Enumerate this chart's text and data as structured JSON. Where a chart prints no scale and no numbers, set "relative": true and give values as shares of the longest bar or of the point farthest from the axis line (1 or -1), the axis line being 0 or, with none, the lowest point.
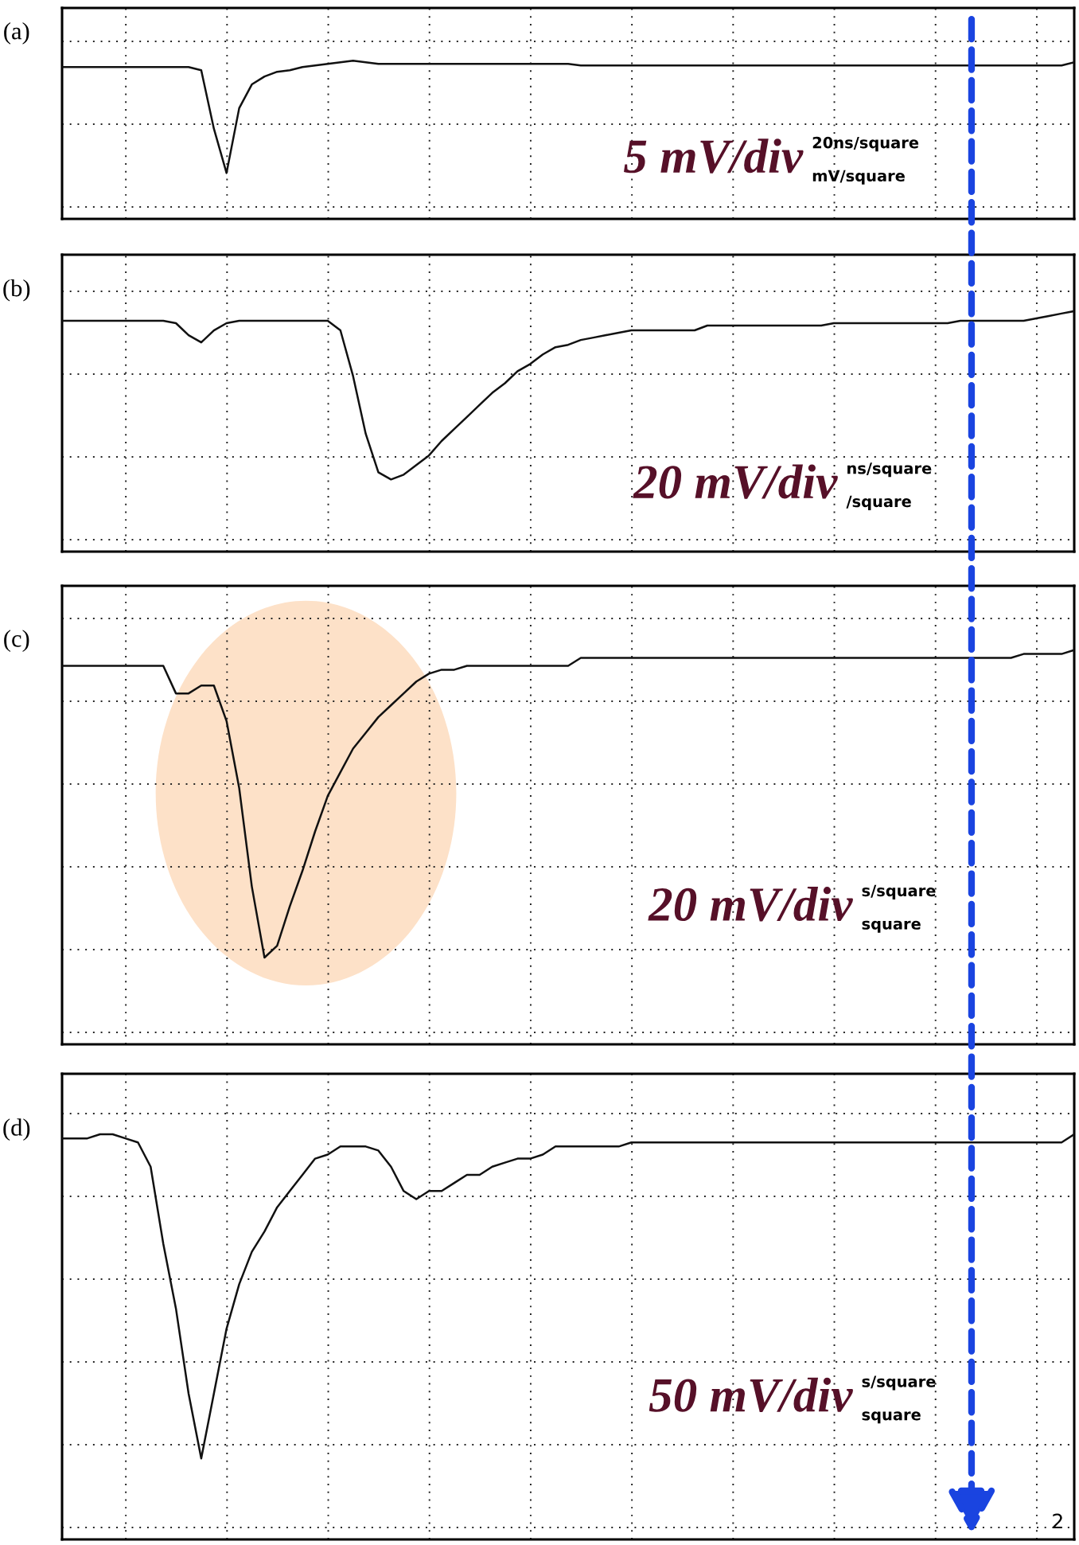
{
  "chart_data": [
    {
      "type": "line",
      "title": "(a)",
      "relative": true,
      "grid": true,
      "categories": [
        null,
        null,
        null,
        null,
        null,
        null,
        null,
        null,
        null,
        null,
        null,
        null,
        null,
        null,
        null,
        null,
        null,
        null,
        null,
        null,
        null,
        null,
        null,
        null,
        null,
        null,
        null,
        null,
        null,
        null,
        null,
        null,
        null,
        null,
        null,
        null,
        null,
        null,
        null,
        null,
        null,
        null,
        null,
        null,
        null,
        null,
        null,
        null,
        null,
        null,
        null,
        null,
        null,
        null,
        null,
        null,
        null,
        null,
        null,
        null,
        null,
        null,
        null,
        null,
        null,
        null,
        null,
        null,
        null,
        null,
        null,
        null,
        null,
        null,
        null,
        null,
        null,
        null,
        null,
        null,
        null
      ],
      "series": [
        {
          "color": "#111111",
          "values": [
            0.96,
            0.96,
            0.96,
            0.96,
            0.96,
            0.96,
            0.96,
            0.96,
            0.96,
            0.96,
            0.96,
            0.94,
            0.57,
            0.29,
            0.7,
            0.85,
            0.9,
            0.93,
            0.94,
            0.96,
            0.97,
            0.98,
            0.99,
            1.0,
            0.99,
            0.98,
            0.98,
            0.98,
            0.98,
            0.98,
            0.98,
            0.98,
            0.98,
            0.98,
            0.98,
            0.98,
            0.98,
            0.98,
            0.98,
            0.98,
            0.98,
            0.97,
            0.97,
            0.97,
            0.97,
            0.97,
            0.97,
            0.97,
            0.97,
            0.97,
            0.97,
            0.97,
            0.97,
            0.97,
            0.97,
            0.97,
            0.97,
            0.97,
            0.97,
            0.97,
            0.97,
            0.97,
            0.97,
            0.97,
            0.97,
            0.97,
            0.97,
            0.97,
            0.97,
            0.97,
            0.97,
            0.97,
            0.97,
            0.97,
            0.97,
            0.97,
            0.97,
            0.97,
            0.97,
            0.97,
            0.99
          ]
        }
      ],
      "annotations": [
        "5 mV/div",
        "20ns/square",
        "mV/square"
      ]
    },
    {
      "type": "line",
      "title": "(b)",
      "relative": true,
      "grid": true,
      "categories": [
        null,
        null,
        null,
        null,
        null,
        null,
        null,
        null,
        null,
        null,
        null,
        null,
        null,
        null,
        null,
        null,
        null,
        null,
        null,
        null,
        null,
        null,
        null,
        null,
        null,
        null,
        null,
        null,
        null,
        null,
        null,
        null,
        null,
        null,
        null,
        null,
        null,
        null,
        null,
        null,
        null,
        null,
        null,
        null,
        null,
        null,
        null,
        null,
        null,
        null,
        null,
        null,
        null,
        null,
        null,
        null,
        null,
        null,
        null,
        null,
        null,
        null,
        null,
        null,
        null,
        null,
        null,
        null,
        null,
        null,
        null,
        null,
        null,
        null,
        null,
        null,
        null,
        null,
        null,
        null,
        null
      ],
      "series": [
        {
          "color": "#111111",
          "values": [
            0.96,
            0.96,
            0.96,
            0.96,
            0.96,
            0.96,
            0.96,
            0.96,
            0.96,
            0.95,
            0.9,
            0.87,
            0.92,
            0.95,
            0.96,
            0.96,
            0.96,
            0.96,
            0.96,
            0.96,
            0.96,
            0.96,
            0.92,
            0.73,
            0.49,
            0.33,
            0.3,
            0.32,
            0.36,
            0.4,
            0.46,
            0.51,
            0.56,
            0.61,
            0.66,
            0.7,
            0.75,
            0.78,
            0.82,
            0.85,
            0.86,
            0.88,
            0.89,
            0.9,
            0.91,
            0.92,
            0.92,
            0.92,
            0.92,
            0.92,
            0.92,
            0.94,
            0.94,
            0.94,
            0.94,
            0.94,
            0.94,
            0.94,
            0.94,
            0.94,
            0.94,
            0.95,
            0.95,
            0.95,
            0.95,
            0.95,
            0.95,
            0.95,
            0.95,
            0.95,
            0.95,
            0.96,
            0.96,
            0.96,
            0.96,
            0.96,
            0.96,
            0.97,
            0.98,
            0.99,
            1.0
          ]
        }
      ],
      "annotations": [
        "20 mV/div",
        "ns/square",
        "/square"
      ]
    },
    {
      "type": "line",
      "title": "(c)",
      "relative": true,
      "grid": true,
      "categories": [
        null,
        null,
        null,
        null,
        null,
        null,
        null,
        null,
        null,
        null,
        null,
        null,
        null,
        null,
        null,
        null,
        null,
        null,
        null,
        null,
        null,
        null,
        null,
        null,
        null,
        null,
        null,
        null,
        null,
        null,
        null,
        null,
        null,
        null,
        null,
        null,
        null,
        null,
        null,
        null,
        null,
        null,
        null,
        null,
        null,
        null,
        null,
        null,
        null,
        null,
        null,
        null,
        null,
        null,
        null,
        null,
        null,
        null,
        null,
        null,
        null,
        null,
        null,
        null,
        null,
        null,
        null,
        null,
        null,
        null,
        null,
        null,
        null,
        null,
        null,
        null,
        null,
        null,
        null,
        null,
        null
      ],
      "series": [
        {
          "color": "#111111",
          "values": [
            0.96,
            0.96,
            0.96,
            0.96,
            0.96,
            0.96,
            0.96,
            0.96,
            0.96,
            0.89,
            0.89,
            0.91,
            0.91,
            0.82,
            0.65,
            0.4,
            0.22,
            0.25,
            0.35,
            0.44,
            0.54,
            0.63,
            0.69,
            0.75,
            0.79,
            0.83,
            0.86,
            0.89,
            0.92,
            0.94,
            0.95,
            0.95,
            0.96,
            0.96,
            0.96,
            0.96,
            0.96,
            0.96,
            0.96,
            0.96,
            0.96,
            0.98,
            0.98,
            0.98,
            0.98,
            0.98,
            0.98,
            0.98,
            0.98,
            0.98,
            0.98,
            0.98,
            0.98,
            0.98,
            0.98,
            0.98,
            0.98,
            0.98,
            0.98,
            0.98,
            0.98,
            0.98,
            0.98,
            0.98,
            0.98,
            0.98,
            0.98,
            0.98,
            0.98,
            0.98,
            0.98,
            0.98,
            0.98,
            0.98,
            0.98,
            0.98,
            0.99,
            0.99,
            0.99,
            0.99,
            1.0
          ]
        }
      ],
      "annotations": [
        "20 mV/div",
        "s/square",
        "square"
      ]
    },
    {
      "type": "line",
      "title": "(d)",
      "relative": true,
      "grid": true,
      "categories": [
        null,
        null,
        null,
        null,
        null,
        null,
        null,
        null,
        null,
        null,
        null,
        null,
        null,
        null,
        null,
        null,
        null,
        null,
        null,
        null,
        null,
        null,
        null,
        null,
        null,
        null,
        null,
        null,
        null,
        null,
        null,
        null,
        null,
        null,
        null,
        null,
        null,
        null,
        null,
        null,
        null,
        null,
        null,
        null,
        null,
        null,
        null,
        null,
        null,
        null,
        null,
        null,
        null,
        null,
        null,
        null,
        null,
        null,
        null,
        null,
        null,
        null,
        null,
        null,
        null,
        null,
        null,
        null,
        null,
        null,
        null,
        null,
        null,
        null,
        null,
        null,
        null,
        null,
        null,
        null,
        null
      ],
      "series": [
        {
          "color": "#111111",
          "values": [
            0.99,
            0.99,
            0.99,
            1.0,
            1.0,
            0.99,
            0.98,
            0.92,
            0.73,
            0.57,
            0.36,
            0.2,
            0.36,
            0.52,
            0.63,
            0.71,
            0.76,
            0.82,
            0.86,
            0.9,
            0.94,
            0.95,
            0.97,
            0.97,
            0.97,
            0.96,
            0.92,
            0.86,
            0.84,
            0.86,
            0.86,
            0.88,
            0.9,
            0.9,
            0.92,
            0.93,
            0.94,
            0.94,
            0.95,
            0.97,
            0.97,
            0.97,
            0.97,
            0.97,
            0.97,
            0.98,
            0.98,
            0.98,
            0.98,
            0.98,
            0.98,
            0.98,
            0.98,
            0.98,
            0.98,
            0.98,
            0.98,
            0.98,
            0.98,
            0.98,
            0.98,
            0.98,
            0.98,
            0.98,
            0.98,
            0.98,
            0.98,
            0.98,
            0.98,
            0.98,
            0.98,
            0.98,
            0.98,
            0.98,
            0.98,
            0.98,
            0.98,
            0.98,
            0.98,
            0.98,
            1.0
          ]
        }
      ],
      "annotations": [
        "50 mV/div",
        "s/square",
        "square",
        "2"
      ]
    }
  ]
}
